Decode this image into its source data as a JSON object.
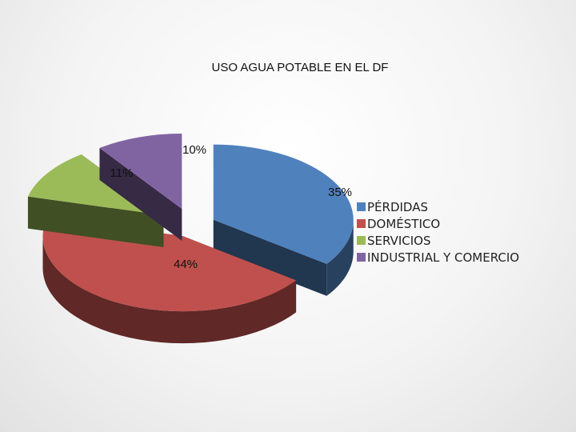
{
  "chart_data": {
    "type": "pie",
    "title": "USO AGUA POTABLE EN EL DF",
    "three_d": true,
    "exploded": true,
    "legend_position": "right",
    "slices": [
      {
        "name": "PÉRDIDAS",
        "value": 35,
        "label": "35%",
        "color": "#4f81bd"
      },
      {
        "name": "DOMÉSTICO",
        "value": 44,
        "label": "44%",
        "color": "#c0504d"
      },
      {
        "name": "SERVICIOS",
        "value": 11,
        "label": "11%",
        "color": "#9bbb59"
      },
      {
        "name": "INDUSTRIAL Y COMERCIO",
        "value": 10,
        "label": "10%",
        "color": "#8064a2"
      }
    ]
  }
}
